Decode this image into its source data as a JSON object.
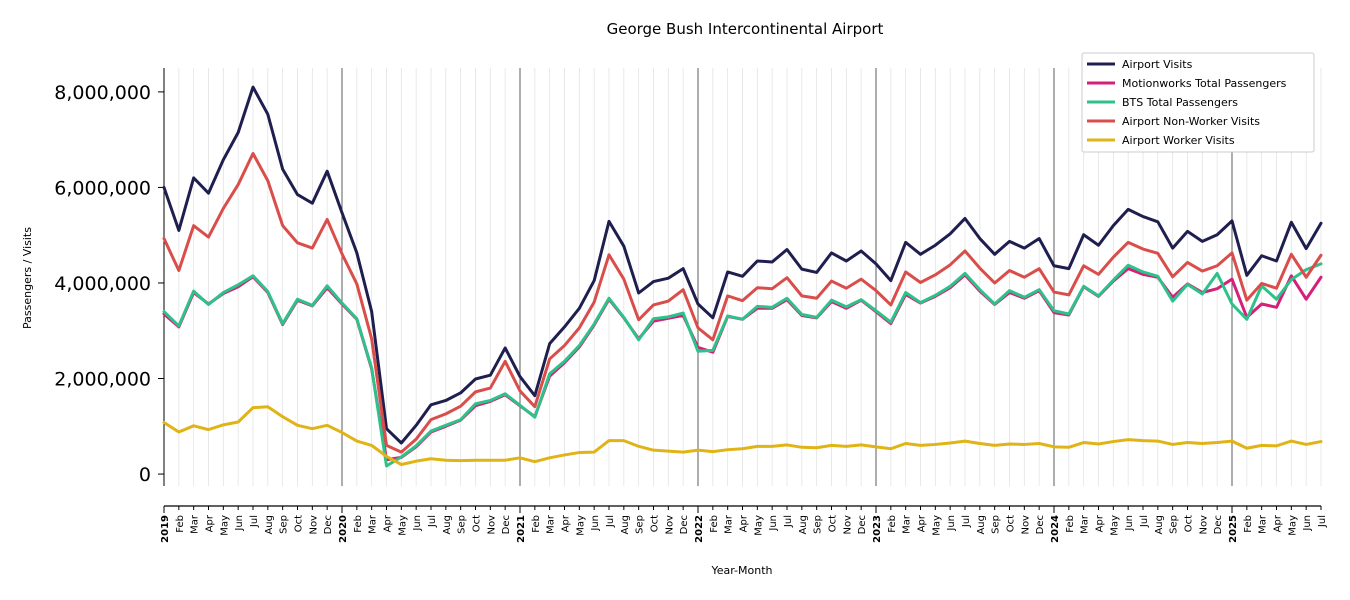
{
  "chart_data": {
    "type": "line",
    "title": "George Bush Intercontinental Airport",
    "xlabel": "Year-Month",
    "ylabel": "Passengers / Visits",
    "ylim": [
      -250000,
      8500000
    ],
    "yticks": [
      0,
      2000000,
      4000000,
      6000000,
      8000000
    ],
    "ytick_labels": [
      "0",
      "2,000,000",
      "4,000,000",
      "6,000,000",
      "8,000,000"
    ],
    "grid": "vertical-monthly",
    "legend_position": "top-right",
    "x_labels": [
      "2019",
      "Feb",
      "Mar",
      "Apr",
      "May",
      "Jun",
      "Jul",
      "Aug",
      "Sep",
      "Oct",
      "Nov",
      "Dec",
      "2020",
      "Feb",
      "Mar",
      "Apr",
      "May",
      "Jun",
      "Jul",
      "Aug",
      "Sep",
      "Oct",
      "Nov",
      "Dec",
      "2021",
      "Feb",
      "Mar",
      "Apr",
      "May",
      "Jun",
      "Jul",
      "Aug",
      "Sep",
      "Oct",
      "Nov",
      "Dec",
      "2022",
      "Feb",
      "Mar",
      "Apr",
      "May",
      "Jun",
      "Jul",
      "Aug",
      "Sep",
      "Oct",
      "Nov",
      "Dec",
      "2023",
      "Feb",
      "Mar",
      "Apr",
      "May",
      "Jun",
      "Jul",
      "Aug",
      "Sep",
      "Oct",
      "Nov",
      "Dec",
      "2024",
      "Feb",
      "Mar",
      "Apr",
      "May",
      "Jun",
      "Jul",
      "Aug",
      "Sep",
      "Oct",
      "Nov",
      "Dec",
      "2025",
      "Feb",
      "Mar",
      "Apr",
      "May",
      "Jun",
      "Jul"
    ],
    "series": [
      {
        "name": "Airport Visits",
        "color": "#1f1f4f",
        "values": [
          6000000,
          5100000,
          6200000,
          5880000,
          6580000,
          7150000,
          8100000,
          7530000,
          6380000,
          5850000,
          5670000,
          6340000,
          5470000,
          4630000,
          3400000,
          950000,
          650000,
          1020000,
          1450000,
          1540000,
          1700000,
          1990000,
          2070000,
          2640000,
          2040000,
          1640000,
          2730000,
          3080000,
          3470000,
          4050000,
          5290000,
          4770000,
          3790000,
          4030000,
          4100000,
          4300000,
          3560000,
          3270000,
          4230000,
          4140000,
          4460000,
          4440000,
          4700000,
          4290000,
          4220000,
          4630000,
          4460000,
          4670000,
          4400000,
          4050000,
          4850000,
          4600000,
          4790000,
          5030000,
          5350000,
          4930000,
          4600000,
          4870000,
          4730000,
          4930000,
          4360000,
          4300000,
          5010000,
          4790000,
          5200000,
          5540000,
          5390000,
          5280000,
          4730000,
          5080000,
          4870000,
          5010000,
          5300000,
          4160000,
          4570000,
          4460000,
          5270000,
          4720000,
          5250000
        ]
      },
      {
        "name": "Motionworks Total Passengers",
        "color": "#d4207a",
        "values": [
          3350000,
          3080000,
          3800000,
          3560000,
          3780000,
          3920000,
          4130000,
          3800000,
          3130000,
          3640000,
          3520000,
          3900000,
          3560000,
          3240000,
          2200000,
          300000,
          350000,
          570000,
          880000,
          1000000,
          1130000,
          1430000,
          1520000,
          1660000,
          1430000,
          1200000,
          2050000,
          2330000,
          2660000,
          3120000,
          3660000,
          3270000,
          2830000,
          3200000,
          3260000,
          3320000,
          2650000,
          2550000,
          3300000,
          3240000,
          3470000,
          3470000,
          3650000,
          3320000,
          3270000,
          3610000,
          3470000,
          3640000,
          3400000,
          3150000,
          3760000,
          3580000,
          3720000,
          3900000,
          4170000,
          3830000,
          3550000,
          3800000,
          3680000,
          3840000,
          3380000,
          3330000,
          3920000,
          3720000,
          4040000,
          4300000,
          4180000,
          4120000,
          3700000,
          3980000,
          3800000,
          3880000,
          4080000,
          3280000,
          3560000,
          3490000,
          4150000,
          3660000,
          4120000
        ]
      },
      {
        "name": "BTS Total Passengers",
        "color": "#2ec18a",
        "values": [
          3400000,
          3100000,
          3830000,
          3550000,
          3800000,
          3960000,
          4150000,
          3820000,
          3150000,
          3660000,
          3530000,
          3940000,
          3580000,
          3250000,
          2220000,
          170000,
          360000,
          590000,
          900000,
          1020000,
          1140000,
          1470000,
          1540000,
          1680000,
          1440000,
          1190000,
          2100000,
          2360000,
          2690000,
          3140000,
          3680000,
          3280000,
          2810000,
          3250000,
          3290000,
          3370000,
          2570000,
          2590000,
          3310000,
          3240000,
          3510000,
          3490000,
          3680000,
          3340000,
          3280000,
          3640000,
          3500000,
          3650000,
          3420000,
          3180000,
          3800000,
          3590000,
          3740000,
          3930000,
          4200000,
          3860000,
          3560000,
          3840000,
          3700000,
          3860000,
          3420000,
          3350000,
          3930000,
          3730000,
          4060000,
          4370000,
          4230000,
          4140000,
          3620000,
          3970000,
          3770000,
          4200000,
          3560000,
          3240000,
          3940000,
          3660000,
          4070000,
          4280000,
          4400000
        ]
      },
      {
        "name": "Airport Non-Worker Visits",
        "color": "#d94e4a",
        "values": [
          4930000,
          4260000,
          5200000,
          4960000,
          5560000,
          6060000,
          6710000,
          6140000,
          5200000,
          4840000,
          4730000,
          5330000,
          4610000,
          3980000,
          2830000,
          600000,
          460000,
          730000,
          1140000,
          1260000,
          1420000,
          1720000,
          1800000,
          2360000,
          1740000,
          1410000,
          2410000,
          2690000,
          3060000,
          3600000,
          4590000,
          4080000,
          3230000,
          3540000,
          3620000,
          3860000,
          3060000,
          2810000,
          3730000,
          3630000,
          3900000,
          3880000,
          4110000,
          3730000,
          3680000,
          4040000,
          3890000,
          4080000,
          3840000,
          3540000,
          4230000,
          4010000,
          4170000,
          4380000,
          4670000,
          4310000,
          4000000,
          4260000,
          4120000,
          4300000,
          3810000,
          3750000,
          4360000,
          4180000,
          4540000,
          4850000,
          4710000,
          4620000,
          4130000,
          4430000,
          4250000,
          4360000,
          4630000,
          3640000,
          3990000,
          3890000,
          4600000,
          4120000,
          4580000
        ]
      },
      {
        "name": "Airport Worker Visits",
        "color": "#e0b316",
        "values": [
          1080000,
          880000,
          1010000,
          930000,
          1030000,
          1090000,
          1390000,
          1410000,
          1200000,
          1020000,
          950000,
          1020000,
          870000,
          690000,
          600000,
          370000,
          200000,
          270000,
          320000,
          290000,
          280000,
          290000,
          290000,
          290000,
          340000,
          260000,
          340000,
          400000,
          450000,
          460000,
          700000,
          700000,
          580000,
          500000,
          480000,
          460000,
          500000,
          470000,
          510000,
          530000,
          580000,
          580000,
          610000,
          560000,
          550000,
          600000,
          580000,
          610000,
          570000,
          530000,
          640000,
          600000,
          620000,
          650000,
          690000,
          640000,
          600000,
          630000,
          620000,
          640000,
          570000,
          560000,
          660000,
          630000,
          680000,
          720000,
          700000,
          690000,
          620000,
          660000,
          640000,
          660000,
          690000,
          540000,
          600000,
          590000,
          690000,
          620000,
          680000
        ]
      }
    ]
  }
}
